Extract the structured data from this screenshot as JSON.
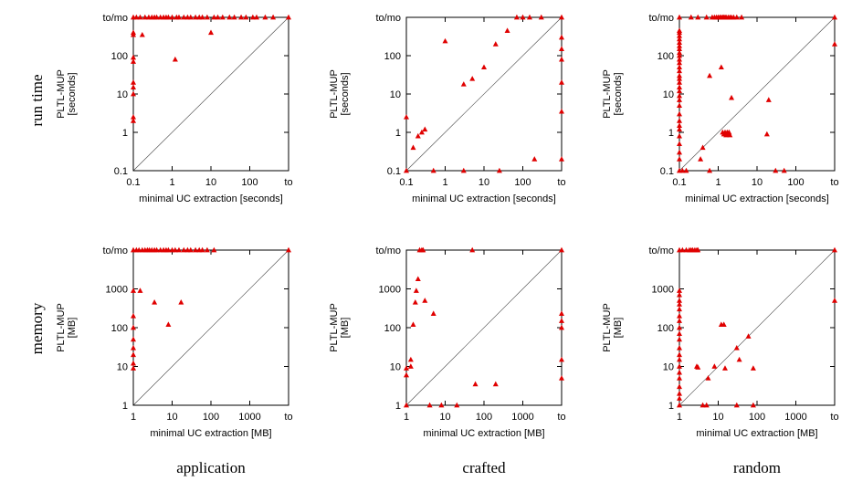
{
  "row_labels": [
    "run time",
    "memory"
  ],
  "column_labels": [
    "application",
    "crafted",
    "random"
  ],
  "marker_color": "#e00000",
  "chart_data": [
    {
      "type": "scatter",
      "scale": "log",
      "xlabel": "minimal UC extraction [seconds]",
      "ylabel": [
        "PLTL-MUP",
        "[seconds]"
      ],
      "xlim": [
        0.1,
        1000
      ],
      "ylim": [
        0.1,
        1000
      ],
      "x_ticks": [
        {
          "v": 0.1,
          "l": "0.1"
        },
        {
          "v": 1,
          "l": "1"
        },
        {
          "v": 10,
          "l": "10"
        },
        {
          "v": 100,
          "l": "100"
        },
        {
          "v": 1000,
          "l": "to"
        }
      ],
      "y_ticks": [
        {
          "v": 0.1,
          "l": "0.1"
        },
        {
          "v": 1,
          "l": "1"
        },
        {
          "v": 10,
          "l": "10"
        },
        {
          "v": 100,
          "l": "100"
        },
        {
          "v": 1000,
          "l": "to/mo"
        }
      ],
      "points": [
        [
          0.1,
          1000
        ],
        [
          0.1,
          400
        ],
        [
          0.1,
          350
        ],
        [
          0.1,
          90
        ],
        [
          0.1,
          70
        ],
        [
          0.1,
          20
        ],
        [
          0.1,
          15
        ],
        [
          0.1,
          10
        ],
        [
          0.1,
          2.5
        ],
        [
          0.1,
          2
        ],
        [
          0.12,
          1000
        ],
        [
          0.15,
          1000
        ],
        [
          0.17,
          350
        ],
        [
          0.2,
          1000
        ],
        [
          0.25,
          1000
        ],
        [
          0.3,
          1000
        ],
        [
          0.35,
          1000
        ],
        [
          0.4,
          1000
        ],
        [
          0.5,
          1000
        ],
        [
          0.6,
          1000
        ],
        [
          0.7,
          1000
        ],
        [
          0.8,
          1000
        ],
        [
          1,
          1000
        ],
        [
          1.2,
          80
        ],
        [
          1.3,
          1000
        ],
        [
          1.5,
          1000
        ],
        [
          2,
          1000
        ],
        [
          2.5,
          1000
        ],
        [
          3,
          1000
        ],
        [
          4,
          1000
        ],
        [
          5,
          1000
        ],
        [
          6,
          1000
        ],
        [
          8,
          1000
        ],
        [
          10,
          400
        ],
        [
          12,
          1000
        ],
        [
          15,
          1000
        ],
        [
          20,
          1000
        ],
        [
          30,
          1000
        ],
        [
          40,
          1000
        ],
        [
          60,
          1000
        ],
        [
          80,
          1000
        ],
        [
          120,
          1000
        ],
        [
          150,
          1000
        ],
        [
          250,
          1000
        ],
        [
          400,
          1000
        ],
        [
          1000,
          1000
        ]
      ]
    },
    {
      "type": "scatter",
      "scale": "log",
      "xlabel": "minimal UC extraction [seconds]",
      "ylabel": [
        "PLTL-MUP",
        "[seconds]"
      ],
      "xlim": [
        0.1,
        1000
      ],
      "ylim": [
        0.1,
        1000
      ],
      "x_ticks": [
        {
          "v": 0.1,
          "l": "0.1"
        },
        {
          "v": 1,
          "l": "1"
        },
        {
          "v": 10,
          "l": "10"
        },
        {
          "v": 100,
          "l": "100"
        },
        {
          "v": 1000,
          "l": "to"
        }
      ],
      "y_ticks": [
        {
          "v": 0.1,
          "l": "0.1"
        },
        {
          "v": 1,
          "l": "1"
        },
        {
          "v": 10,
          "l": "10"
        },
        {
          "v": 100,
          "l": "100"
        },
        {
          "v": 1000,
          "l": "to/mo"
        }
      ],
      "points": [
        [
          0.1,
          2.5
        ],
        [
          0.1,
          0.1
        ],
        [
          0.15,
          0.4
        ],
        [
          0.2,
          0.8
        ],
        [
          0.25,
          1
        ],
        [
          0.3,
          1.2
        ],
        [
          0.5,
          0.1
        ],
        [
          1,
          240
        ],
        [
          3,
          18
        ],
        [
          3,
          0.1
        ],
        [
          5,
          25
        ],
        [
          10,
          50
        ],
        [
          20,
          200
        ],
        [
          25,
          0.1
        ],
        [
          40,
          450
        ],
        [
          70,
          1000
        ],
        [
          100,
          1000
        ],
        [
          150,
          1000
        ],
        [
          200,
          0.2
        ],
        [
          300,
          1000
        ],
        [
          1000,
          1000
        ],
        [
          1000,
          300
        ],
        [
          1000,
          150
        ],
        [
          1000,
          80
        ],
        [
          1000,
          20
        ],
        [
          1000,
          3.5
        ],
        [
          1000,
          0.2
        ]
      ]
    },
    {
      "type": "scatter",
      "scale": "log",
      "xlabel": "minimal UC extraction [seconds]",
      "ylabel": [
        "PLTL-MUP",
        "[seconds]"
      ],
      "xlim": [
        0.1,
        1000
      ],
      "ylim": [
        0.1,
        1000
      ],
      "x_ticks": [
        {
          "v": 0.1,
          "l": "0.1"
        },
        {
          "v": 1,
          "l": "1"
        },
        {
          "v": 10,
          "l": "10"
        },
        {
          "v": 100,
          "l": "100"
        },
        {
          "v": 1000,
          "l": "to"
        }
      ],
      "y_ticks": [
        {
          "v": 0.1,
          "l": "0.1"
        },
        {
          "v": 1,
          "l": "1"
        },
        {
          "v": 10,
          "l": "10"
        },
        {
          "v": 100,
          "l": "100"
        },
        {
          "v": 1000,
          "l": "to/mo"
        }
      ],
      "points": [
        [
          0.1,
          1000
        ],
        [
          0.1,
          450
        ],
        [
          0.1,
          400
        ],
        [
          0.1,
          330
        ],
        [
          0.1,
          270
        ],
        [
          0.1,
          220
        ],
        [
          0.1,
          180
        ],
        [
          0.1,
          150
        ],
        [
          0.1,
          120
        ],
        [
          0.1,
          100
        ],
        [
          0.1,
          80
        ],
        [
          0.1,
          65
        ],
        [
          0.1,
          50
        ],
        [
          0.1,
          40
        ],
        [
          0.1,
          30
        ],
        [
          0.1,
          25
        ],
        [
          0.1,
          20
        ],
        [
          0.1,
          15
        ],
        [
          0.1,
          12
        ],
        [
          0.1,
          9
        ],
        [
          0.1,
          7
        ],
        [
          0.1,
          5
        ],
        [
          0.1,
          3
        ],
        [
          0.1,
          2
        ],
        [
          0.1,
          1.5
        ],
        [
          0.1,
          1.2
        ],
        [
          0.1,
          0.8
        ],
        [
          0.1,
          0.5
        ],
        [
          0.1,
          0.3
        ],
        [
          0.1,
          0.2
        ],
        [
          0.1,
          0.1
        ],
        [
          0.12,
          0.1
        ],
        [
          0.15,
          0.1
        ],
        [
          0.2,
          1000
        ],
        [
          0.3,
          1000
        ],
        [
          0.35,
          0.2
        ],
        [
          0.4,
          0.4
        ],
        [
          0.5,
          1000
        ],
        [
          0.6,
          30
        ],
        [
          0.6,
          0.1
        ],
        [
          0.7,
          1000
        ],
        [
          0.8,
          1000
        ],
        [
          0.9,
          1000
        ],
        [
          1,
          1000
        ],
        [
          1.1,
          1000
        ],
        [
          1.2,
          1000
        ],
        [
          1.3,
          1000
        ],
        [
          1.4,
          1000
        ],
        [
          1.5,
          1000
        ],
        [
          1.6,
          1000
        ],
        [
          1.8,
          1000
        ],
        [
          2,
          1000
        ],
        [
          2.2,
          1000
        ],
        [
          2.5,
          1000
        ],
        [
          3,
          1000
        ],
        [
          4,
          1000
        ],
        [
          1.2,
          50
        ],
        [
          1.3,
          1
        ],
        [
          1.4,
          0.9
        ],
        [
          1.5,
          1
        ],
        [
          1.6,
          0.85
        ],
        [
          1.7,
          1
        ],
        [
          1.8,
          0.9
        ],
        [
          1.9,
          1
        ],
        [
          2,
          0.85
        ],
        [
          1.5,
          0.95
        ],
        [
          2.2,
          8
        ],
        [
          20,
          7
        ],
        [
          18,
          0.9
        ],
        [
          30,
          0.1
        ],
        [
          50,
          0.1
        ],
        [
          1000,
          1000
        ],
        [
          1000,
          200
        ]
      ]
    },
    {
      "type": "scatter",
      "scale": "log",
      "xlabel": "minimal UC extraction [MB]",
      "ylabel": [
        "PLTL-MUP",
        "[MB]"
      ],
      "xlim": [
        1,
        10000
      ],
      "ylim": [
        1,
        10000
      ],
      "x_ticks": [
        {
          "v": 1,
          "l": "1"
        },
        {
          "v": 10,
          "l": "10"
        },
        {
          "v": 100,
          "l": "100"
        },
        {
          "v": 1000,
          "l": "1000"
        },
        {
          "v": 10000,
          "l": "to"
        }
      ],
      "y_ticks": [
        {
          "v": 1,
          "l": "1"
        },
        {
          "v": 10,
          "l": "10"
        },
        {
          "v": 100,
          "l": "100"
        },
        {
          "v": 1000,
          "l": "1000"
        },
        {
          "v": 10000,
          "l": "to/mo"
        }
      ],
      "points": [
        [
          1,
          10000
        ],
        [
          1,
          900
        ],
        [
          1,
          200
        ],
        [
          1,
          100
        ],
        [
          1,
          50
        ],
        [
          1,
          30
        ],
        [
          1,
          20
        ],
        [
          1,
          12
        ],
        [
          1,
          9
        ],
        [
          1.2,
          10000
        ],
        [
          1.4,
          10000
        ],
        [
          1.5,
          900
        ],
        [
          1.7,
          10000
        ],
        [
          2,
          10000
        ],
        [
          2.3,
          10000
        ],
        [
          2.6,
          10000
        ],
        [
          3,
          10000
        ],
        [
          3.5,
          450
        ],
        [
          3.5,
          10000
        ],
        [
          4,
          10000
        ],
        [
          5,
          10000
        ],
        [
          6,
          10000
        ],
        [
          7,
          10000
        ],
        [
          8,
          120
        ],
        [
          8,
          10000
        ],
        [
          10,
          10000
        ],
        [
          12,
          10000
        ],
        [
          15,
          10000
        ],
        [
          17,
          450
        ],
        [
          20,
          10000
        ],
        [
          25,
          10000
        ],
        [
          30,
          10000
        ],
        [
          40,
          10000
        ],
        [
          50,
          10000
        ],
        [
          60,
          10000
        ],
        [
          80,
          10000
        ],
        [
          120,
          10000
        ],
        [
          10000,
          10000
        ]
      ]
    },
    {
      "type": "scatter",
      "scale": "log",
      "xlabel": "minimal UC extraction [MB]",
      "ylabel": [
        "PLTL-MUP",
        "[MB]"
      ],
      "xlim": [
        1,
        10000
      ],
      "ylim": [
        1,
        10000
      ],
      "x_ticks": [
        {
          "v": 1,
          "l": "1"
        },
        {
          "v": 10,
          "l": "10"
        },
        {
          "v": 100,
          "l": "100"
        },
        {
          "v": 1000,
          "l": "1000"
        },
        {
          "v": 10000,
          "l": "to"
        }
      ],
      "y_ticks": [
        {
          "v": 1,
          "l": "1"
        },
        {
          "v": 10,
          "l": "10"
        },
        {
          "v": 100,
          "l": "100"
        },
        {
          "v": 1000,
          "l": "1000"
        },
        {
          "v": 10000,
          "l": "to/mo"
        }
      ],
      "points": [
        [
          1,
          9
        ],
        [
          1,
          6
        ],
        [
          1,
          1
        ],
        [
          1.3,
          15
        ],
        [
          1.3,
          10
        ],
        [
          1.5,
          120
        ],
        [
          1.7,
          450
        ],
        [
          1.8,
          900
        ],
        [
          2,
          1800
        ],
        [
          2.2,
          10000
        ],
        [
          2.5,
          10000
        ],
        [
          2.7,
          10000
        ],
        [
          3,
          500
        ],
        [
          4,
          1
        ],
        [
          5,
          230
        ],
        [
          8,
          1
        ],
        [
          20,
          1
        ],
        [
          50,
          10000
        ],
        [
          60,
          3.5
        ],
        [
          200,
          3.5
        ],
        [
          10000,
          10000
        ],
        [
          10000,
          230
        ],
        [
          10000,
          150
        ],
        [
          10000,
          100
        ],
        [
          10000,
          15
        ],
        [
          10000,
          5
        ]
      ]
    },
    {
      "type": "scatter",
      "scale": "log",
      "xlabel": "minimal UC extraction [MB]",
      "ylabel": [
        "PLTL-MUP",
        "[MB]"
      ],
      "xlim": [
        1,
        10000
      ],
      "ylim": [
        1,
        10000
      ],
      "x_ticks": [
        {
          "v": 1,
          "l": "1"
        },
        {
          "v": 10,
          "l": "10"
        },
        {
          "v": 100,
          "l": "100"
        },
        {
          "v": 1000,
          "l": "1000"
        },
        {
          "v": 10000,
          "l": "to"
        }
      ],
      "y_ticks": [
        {
          "v": 1,
          "l": "1"
        },
        {
          "v": 10,
          "l": "10"
        },
        {
          "v": 100,
          "l": "100"
        },
        {
          "v": 1000,
          "l": "1000"
        },
        {
          "v": 10000,
          "l": "to/mo"
        }
      ],
      "points": [
        [
          1,
          10000
        ],
        [
          1,
          900
        ],
        [
          1,
          700
        ],
        [
          1,
          500
        ],
        [
          1,
          400
        ],
        [
          1,
          300
        ],
        [
          1,
          200
        ],
        [
          1,
          150
        ],
        [
          1,
          100
        ],
        [
          1,
          70
        ],
        [
          1,
          50
        ],
        [
          1,
          30
        ],
        [
          1,
          20
        ],
        [
          1,
          15
        ],
        [
          1,
          10
        ],
        [
          1,
          7
        ],
        [
          1,
          5
        ],
        [
          1,
          3
        ],
        [
          1,
          2
        ],
        [
          1,
          1.5
        ],
        [
          1,
          1
        ],
        [
          1.2,
          10000
        ],
        [
          1.5,
          10000
        ],
        [
          1.8,
          10000
        ],
        [
          2,
          10000
        ],
        [
          2.2,
          10000
        ],
        [
          2.5,
          10000
        ],
        [
          2.8,
          10000
        ],
        [
          3,
          10000
        ],
        [
          2.8,
          10
        ],
        [
          3,
          9.5
        ],
        [
          4,
          1
        ],
        [
          5,
          1
        ],
        [
          5.5,
          5
        ],
        [
          8,
          10
        ],
        [
          12,
          120
        ],
        [
          14,
          120
        ],
        [
          15,
          9
        ],
        [
          30,
          1
        ],
        [
          30,
          30
        ],
        [
          35,
          15
        ],
        [
          60,
          60
        ],
        [
          80,
          1
        ],
        [
          80,
          9
        ],
        [
          10000,
          10000
        ],
        [
          10000,
          500
        ]
      ]
    }
  ]
}
